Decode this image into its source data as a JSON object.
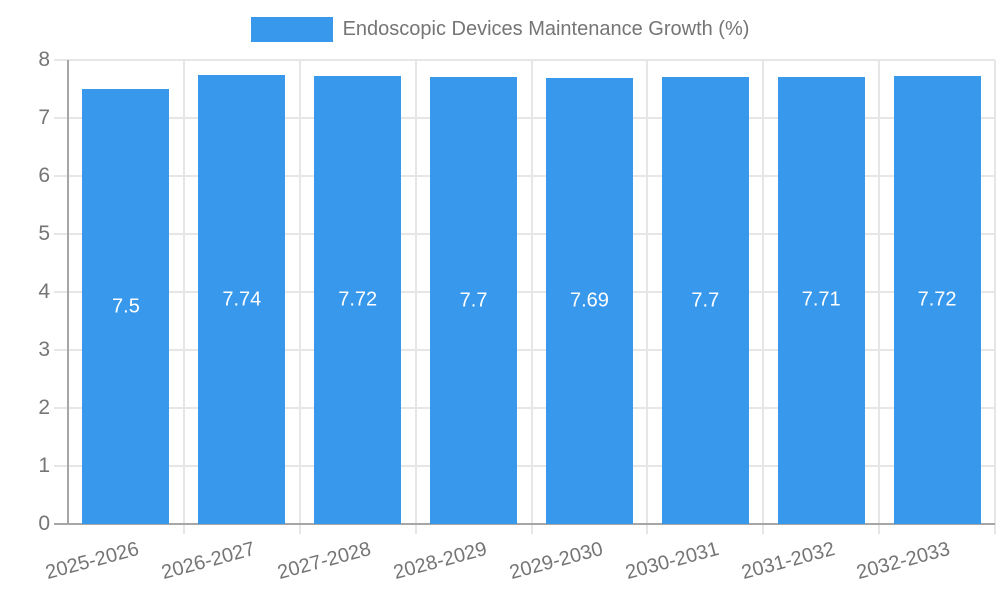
{
  "legend": {
    "label": "Endoscopic Devices Maintenance Growth (%)"
  },
  "colors": {
    "bar": "#3898ec",
    "grid": "#e6e6e6",
    "axis": "#a6a6a6",
    "text": "#757575",
    "value_label": "#ffffff",
    "background": "#ffffff"
  },
  "chart_data": {
    "type": "bar",
    "title": "Endoscopic Devices Maintenance Growth (%)",
    "categories": [
      "2025-2026",
      "2026-2027",
      "2027-2028",
      "2028-2029",
      "2029-2030",
      "2030-2031",
      "2031-2032",
      "2032-2033"
    ],
    "values": [
      7.5,
      7.74,
      7.72,
      7.7,
      7.69,
      7.7,
      7.71,
      7.72
    ],
    "value_labels": [
      "7.5",
      "7.74",
      "7.72",
      "7.7",
      "7.69",
      "7.7",
      "7.71",
      "7.72"
    ],
    "series_name": "Endoscopic Devices Maintenance Growth (%)",
    "xlabel": "",
    "ylabel": "",
    "ylim": [
      0,
      8
    ],
    "y_tick_labels": [
      "0",
      "1",
      "2",
      "3",
      "4",
      "5",
      "6",
      "7",
      "8"
    ],
    "grid": true,
    "legend_position": "top",
    "value_labels_position": "center-inside",
    "value_label_color": "#ffffff"
  }
}
